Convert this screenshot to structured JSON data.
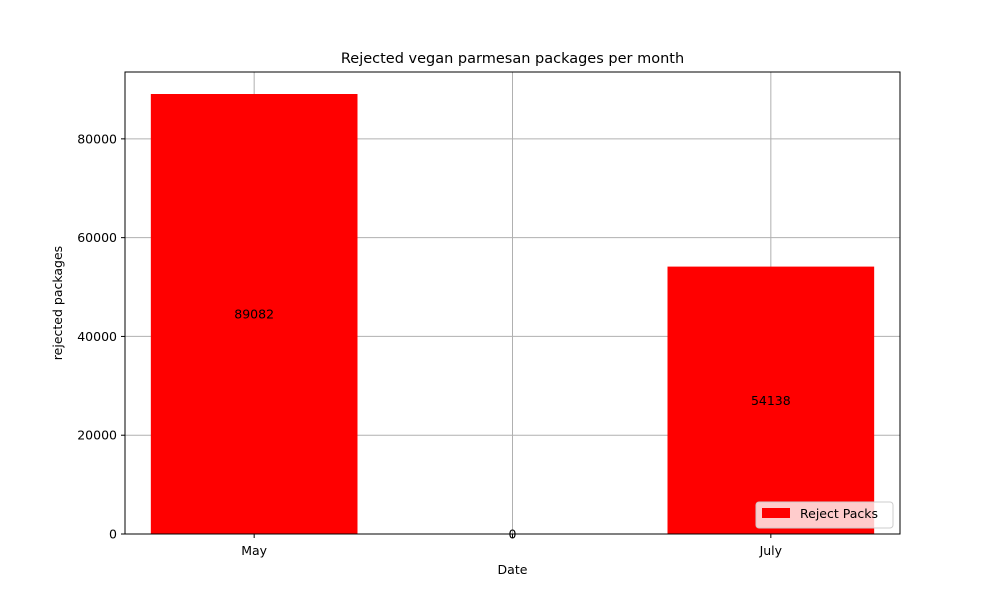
{
  "chart_data": {
    "type": "bar",
    "title": "Rejected vegan parmesan packages per month",
    "xlabel": "Date",
    "ylabel": "rejected packages",
    "categories": [
      "May",
      "",
      "July"
    ],
    "series": [
      {
        "name": "Reject Packs",
        "values": [
          89082,
          0,
          54138
        ],
        "color": "#ff0000"
      }
    ],
    "data_labels": [
      "89082",
      "0",
      "54138"
    ],
    "ylim": [
      0,
      93536
    ],
    "yticks": [
      0,
      20000,
      40000,
      60000,
      80000
    ],
    "ytick_labels": [
      "0",
      "20000",
      "40000",
      "60000",
      "80000"
    ],
    "grid": true,
    "legend_position": "lower-right"
  }
}
